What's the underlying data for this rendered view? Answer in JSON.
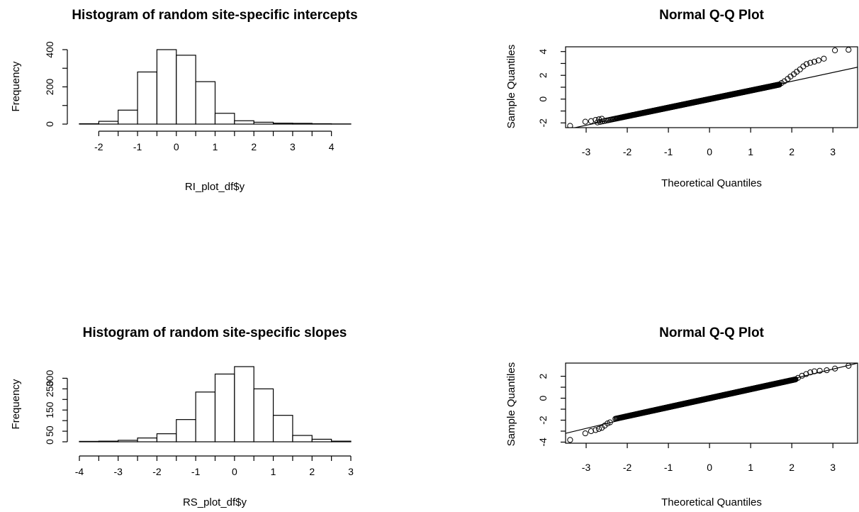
{
  "chart_data": [
    {
      "type": "bar",
      "title": "Histogram of random site-specific intercepts",
      "xlabel": "RI_plot_df$y",
      "ylabel": "Frequency",
      "bin_edges": [
        -2.5,
        -2,
        -1.5,
        -1,
        -0.5,
        0,
        0.5,
        1,
        1.5,
        2,
        2.5,
        3,
        3.5,
        4,
        4.5
      ],
      "values": [
        2,
        15,
        75,
        280,
        400,
        370,
        228,
        58,
        18,
        10,
        5,
        4,
        2,
        1
      ],
      "xlim": [
        -2.5,
        4.5
      ],
      "ylim": [
        0,
        400
      ],
      "xticks": [
        "-2",
        "-1",
        "0",
        "1",
        "2",
        "3",
        "4"
      ],
      "yticks": [
        "0",
        "200",
        "400"
      ]
    },
    {
      "type": "scatter",
      "title": "Normal Q-Q Plot",
      "xlabel": "Theoretical Quantiles",
      "ylabel": "Sample Quantiles",
      "xlim": [
        -3.5,
        3.6
      ],
      "ylim": [
        -2.4,
        4.4
      ],
      "xticks": [
        "-3",
        "-2",
        "-1",
        "0",
        "1",
        "2",
        "3"
      ],
      "yticks": [
        "-2",
        "0",
        "2",
        "4"
      ],
      "reference_line": {
        "intercept": 0.02,
        "slope": 0.74
      },
      "points_body": {
        "x_min": -2.8,
        "x_max": 1.7,
        "intercept": 0.0,
        "slope": 0.72
      },
      "points_tail": [
        [
          -3.39,
          -2.25
        ],
        [
          -3.02,
          -1.9
        ],
        [
          -2.88,
          -1.85
        ],
        [
          -2.77,
          -1.75
        ],
        [
          -2.69,
          -1.7
        ],
        [
          -2.62,
          -1.65
        ],
        [
          1.75,
          1.35
        ],
        [
          1.82,
          1.5
        ],
        [
          1.9,
          1.7
        ],
        [
          1.97,
          1.9
        ],
        [
          2.05,
          2.1
        ],
        [
          2.12,
          2.3
        ],
        [
          2.2,
          2.5
        ],
        [
          2.28,
          2.75
        ],
        [
          2.36,
          2.95
        ],
        [
          2.45,
          3.05
        ],
        [
          2.55,
          3.15
        ],
        [
          2.65,
          3.25
        ],
        [
          2.78,
          3.4
        ],
        [
          3.05,
          4.1
        ],
        [
          3.38,
          4.15
        ]
      ]
    },
    {
      "type": "bar",
      "title": "Histogram of random site-specific slopes",
      "xlabel": "RS_plot_df$y",
      "ylabel": "Frequency",
      "bin_edges": [
        -4,
        -3.5,
        -3,
        -2.5,
        -2,
        -1.5,
        -1,
        -0.5,
        0,
        0.5,
        1,
        1.5,
        2,
        2.5,
        3
      ],
      "values": [
        2,
        3,
        7,
        18,
        38,
        105,
        235,
        320,
        355,
        250,
        125,
        30,
        12,
        3
      ],
      "xlim": [
        -4,
        3
      ],
      "ylim": [
        0,
        355
      ],
      "xticks": [
        "-4",
        "-3",
        "-2",
        "-1",
        "0",
        "1",
        "2",
        "3"
      ],
      "yticks": [
        "0",
        "50",
        "150",
        "250",
        "300"
      ]
    },
    {
      "type": "scatter",
      "title": "Normal Q-Q Plot",
      "xlabel": "Theoretical Quantiles",
      "ylabel": "Sample Quantiles",
      "xlim": [
        -3.5,
        3.6
      ],
      "ylim": [
        -4.1,
        3.2
      ],
      "xticks": [
        "-3",
        "-2",
        "-1",
        "0",
        "1",
        "2",
        "3"
      ],
      "yticks": [
        "-4",
        "-2",
        "0",
        "2"
      ],
      "reference_line": {
        "intercept": -0.05,
        "slope": 0.9
      },
      "points_body": {
        "x_min": -2.3,
        "x_max": 2.1,
        "intercept": 0.0,
        "slope": 0.82
      },
      "points_tail": [
        [
          -3.39,
          -3.8
        ],
        [
          -3.02,
          -3.2
        ],
        [
          -2.88,
          -3.0
        ],
        [
          -2.77,
          -2.9
        ],
        [
          -2.69,
          -2.8
        ],
        [
          -2.62,
          -2.7
        ],
        [
          -2.55,
          -2.5
        ],
        [
          -2.48,
          -2.3
        ],
        [
          -2.42,
          -2.2
        ],
        [
          2.15,
          1.85
        ],
        [
          2.25,
          2.05
        ],
        [
          2.35,
          2.2
        ],
        [
          2.45,
          2.35
        ],
        [
          2.55,
          2.45
        ],
        [
          2.68,
          2.5
        ],
        [
          2.85,
          2.55
        ],
        [
          3.05,
          2.7
        ],
        [
          3.38,
          2.95
        ]
      ]
    }
  ]
}
